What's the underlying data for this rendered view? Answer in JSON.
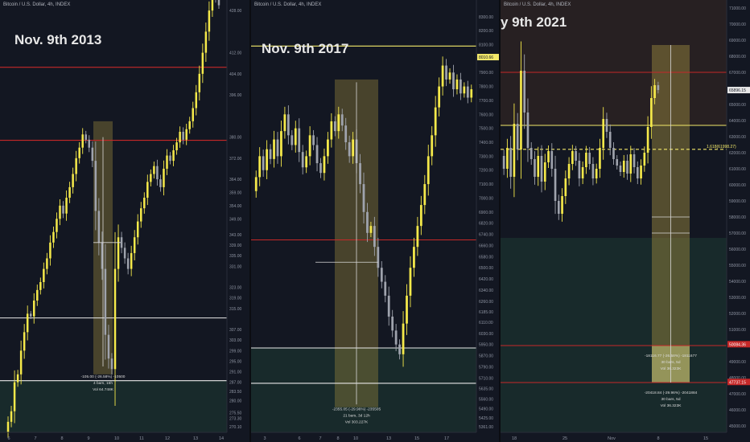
{
  "colors": {
    "background": "#131722",
    "candle_up": "#f5e94a",
    "candle_down": "#9fa3ad",
    "red_line": "#c62828",
    "yellow_line": "#f3e96a",
    "white_line": "#e8e8e8",
    "axis_text": "#8f95a3",
    "measure_box": "#8a7a3a",
    "stop_zone": "#1d3a33",
    "target_zone": "#3b2a22"
  },
  "chart_data": [
    {
      "id": "2013",
      "type": "candlestick",
      "symbol": "Bitcoin / U.S. Dollar, 4h, INDEX",
      "title": "Nov. 9th 2013",
      "x_ticks": [
        "6",
        "7",
        "8",
        "9",
        "10",
        "11",
        "12",
        "13",
        "14"
      ],
      "y_ticks": [
        "428.00",
        "412.00",
        "404.00",
        "396.00",
        "380.00",
        "372.00",
        "364.00",
        "359.00",
        "354.00",
        "349.00",
        "343.00",
        "339.00",
        "335.00",
        "331.00",
        "323.00",
        "319.00",
        "315.00",
        "307.00",
        "303.00",
        "299.00",
        "295.00",
        "291.00",
        "287.00",
        "283.50",
        "280.00",
        "275.50",
        "273.30",
        "270.10"
      ],
      "ylim": [
        268,
        432
      ],
      "price_path": [
        268,
        272,
        276,
        287,
        290,
        299,
        306,
        313,
        312,
        318,
        322,
        325,
        330,
        334,
        340,
        344,
        349,
        354,
        351,
        357,
        361,
        366,
        372,
        376,
        381,
        379,
        376,
        371,
        352,
        340,
        330,
        305,
        296,
        292,
        330,
        342,
        338,
        334,
        330,
        336,
        342,
        348,
        353,
        357,
        363,
        366,
        369,
        364,
        361,
        368,
        373,
        371,
        375,
        378,
        382,
        379,
        383,
        386,
        391,
        397,
        404,
        412,
        420,
        428,
        433,
        432,
        430
      ],
      "lines": [
        {
          "kind": "red",
          "value": 406.5
        },
        {
          "kind": "red",
          "value": 378.8
        },
        {
          "kind": "white",
          "value": 311.4
        },
        {
          "kind": "white",
          "value": 287.6
        }
      ],
      "annotation": {
        "text": [
          "-105.00 (-26.58%) -10500",
          "4 bars, 16h",
          "Vol 64.748K"
        ]
      }
    },
    {
      "id": "2017",
      "type": "candlestick",
      "symbol": "Bitcoin / U.S. Dollar, 4h, INDEX",
      "title": "Nov. 9th 2017",
      "x_ticks": [
        "3",
        "6",
        "7",
        "8",
        "10",
        "13",
        "15",
        "17"
      ],
      "y_ticks": [
        "8400.00",
        "8300.00",
        "8200.00",
        "8100.00",
        "8000.00",
        "7900.00",
        "7800.00",
        "7700.00",
        "7600.00",
        "7500.00",
        "7400.00",
        "7300.00",
        "7200.00",
        "7100.00",
        "7000.00",
        "6900.00",
        "6820.00",
        "6740.00",
        "6660.00",
        "6580.00",
        "6500.00",
        "6420.00",
        "6340.00",
        "6260.00",
        "6185.00",
        "6110.00",
        "6030.00",
        "5950.00",
        "5870.00",
        "5790.00",
        "5710.00",
        "5635.00",
        "5560.00",
        "5490.00",
        "5425.00",
        "5361.00"
      ],
      "ylim": [
        5320,
        8420
      ],
      "price_path": [
        7050,
        7150,
        7300,
        7200,
        7350,
        7280,
        7420,
        7300,
        7480,
        7600,
        7450,
        7380,
        7500,
        7330,
        7220,
        7300,
        7450,
        7380,
        7250,
        7180,
        7300,
        7420,
        7550,
        7480,
        7600,
        7520,
        7400,
        7300,
        7420,
        7250,
        7100,
        6900,
        6750,
        6800,
        6650,
        6500,
        6400,
        6300,
        6150,
        6050,
        5950,
        5880,
        6100,
        6300,
        6500,
        6650,
        6800,
        6950,
        7100,
        7300,
        7450,
        7650,
        7800,
        7950,
        7850,
        7900,
        7780,
        7850,
        7750,
        7800,
        7720,
        7780
      ],
      "lines": [
        {
          "kind": "yellow",
          "value": 8090
        },
        {
          "kind": "red",
          "value": 6700
        },
        {
          "kind": "white",
          "value": 5925
        },
        {
          "kind": "white",
          "value": 5672
        }
      ],
      "price_label": "8010.66",
      "annotation": {
        "text": [
          "-2355.05 (-29.96%) -235505",
          "21 bars, 3d 12h",
          "Vol 303.227K"
        ]
      }
    },
    {
      "id": "2021",
      "type": "candlestick",
      "symbol": "Bitcoin / U.S. Dollar, 4h, INDEX",
      "title": "y 9th 2021",
      "x_ticks": [
        "18",
        "25",
        "Nov",
        "8",
        "15"
      ],
      "y_ticks": [
        "71000.00",
        "70000.00",
        "69000.00",
        "68000.00",
        "67000.00",
        "66000.00",
        "65000.00",
        "64000.00",
        "63000.00",
        "62000.00",
        "61000.00",
        "60000.00",
        "59000.00",
        "58000.00",
        "57000.00",
        "56000.00",
        "55000.00",
        "54000.00",
        "53000.00",
        "52000.00",
        "51000.00",
        "50000.00",
        "49000.00",
        "48000.00",
        "47000.00",
        "46000.00",
        "45000.00"
      ],
      "ylim": [
        44600,
        71500
      ],
      "price_path": [
        61800,
        61000,
        62300,
        60500,
        63800,
        62200,
        67100,
        64500,
        62300,
        61600,
        60500,
        61800,
        60200,
        61400,
        62100,
        61000,
        59000,
        58200,
        59300,
        60400,
        61300,
        62100,
        61500,
        60400,
        61100,
        62000,
        61300,
        60400,
        61000,
        62300,
        64100,
        63300,
        62300,
        61600,
        61200,
        60800,
        61500,
        60700,
        61900,
        61100,
        60400,
        61200,
        62000,
        63600,
        65400,
        66200,
        65900
      ],
      "lines": [
        {
          "kind": "red",
          "value": 67000
        },
        {
          "kind": "yellow",
          "value": 63700
        },
        {
          "kind": "yellow_dashed",
          "value": 62210
        },
        {
          "kind": "red",
          "value": 50000
        },
        {
          "kind": "red",
          "value": 47700
        }
      ],
      "price_label": "65896.15",
      "fib_label": "1.618(61998.27)",
      "red_labels": [
        "50084.36",
        "47737.15"
      ],
      "annotations": [
        {
          "text": [
            "-18116.77 (-26.58%) -1811677",
            "30 bars, 5d",
            "Vol 36.323K"
          ]
        },
        {
          "text": [
            "-20418.84 (-29.96%) -2041884",
            "30 bars, 5d",
            "Vol 36.323K"
          ]
        }
      ]
    }
  ]
}
